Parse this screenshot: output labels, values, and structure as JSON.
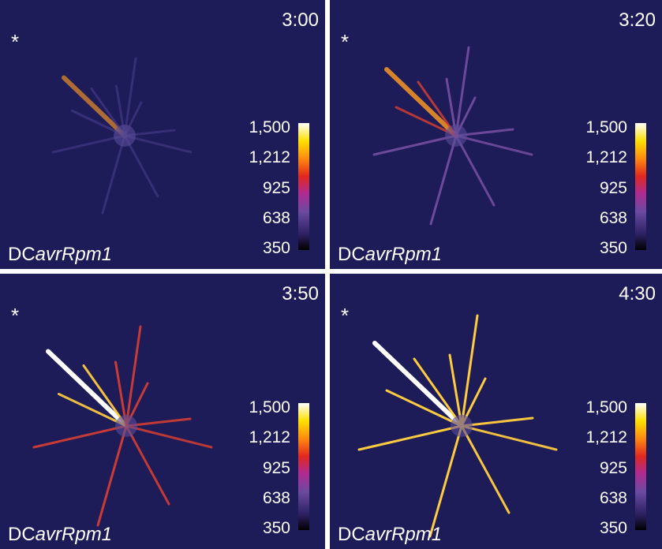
{
  "panels": [
    {
      "time": "3:00",
      "marker": "*",
      "label_plain": "DC",
      "label_italic": "avrRpm1",
      "intensity": 0.25
    },
    {
      "time": "3:20",
      "marker": "*",
      "label_plain": "DC",
      "label_italic": "avrRpm1",
      "intensity": 0.5
    },
    {
      "time": "3:50",
      "marker": "*",
      "label_plain": "DC",
      "label_italic": "avrRpm1",
      "intensity": 0.75
    },
    {
      "time": "4:30",
      "marker": "*",
      "label_plain": "DC",
      "label_italic": "avrRpm1",
      "intensity": 1.0
    }
  ],
  "colorbar": {
    "ticks": [
      "1,500",
      "1,212",
      "925",
      "638",
      "350"
    ]
  }
}
